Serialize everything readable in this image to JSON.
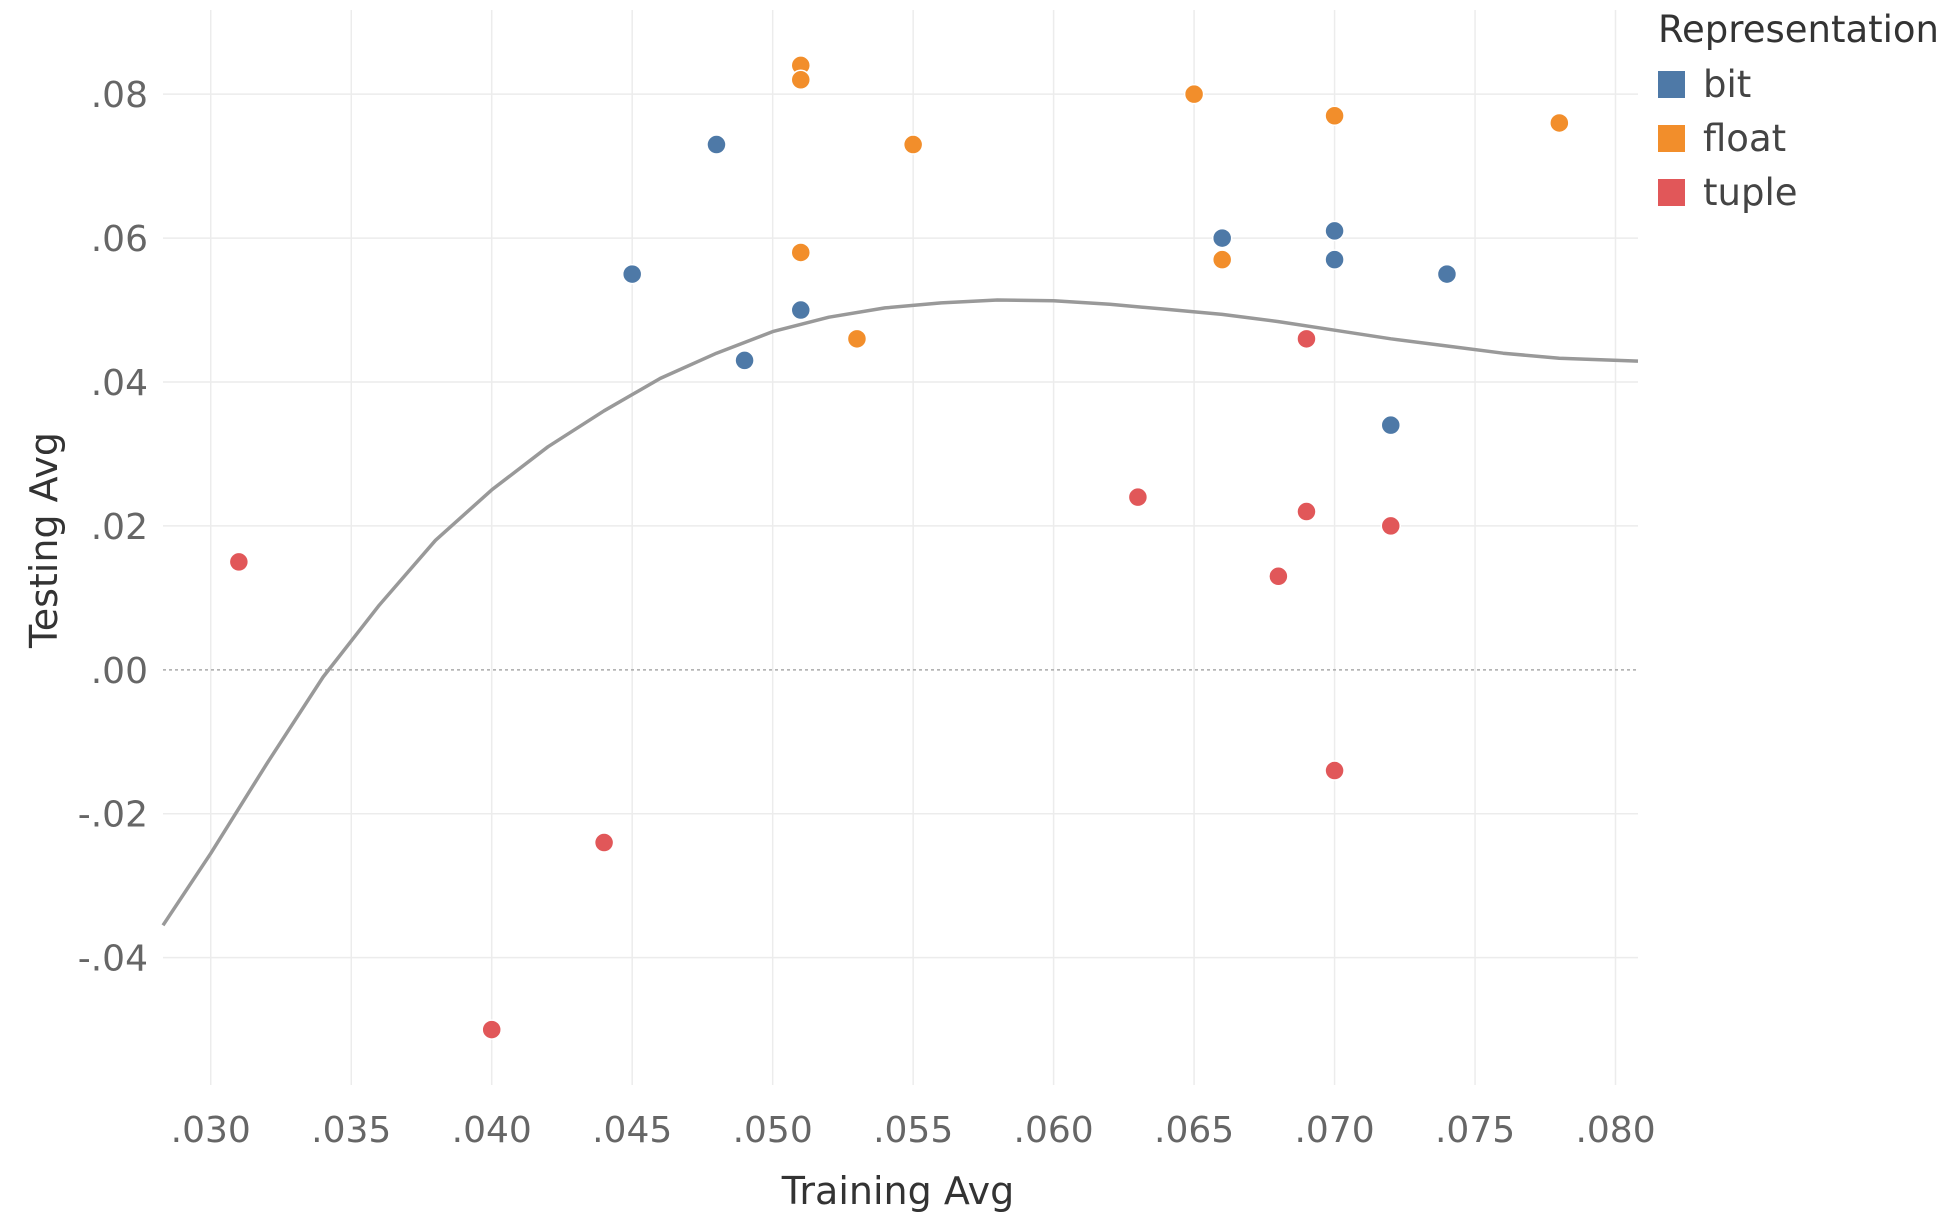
{
  "chart_data": {
    "type": "scatter",
    "xlabel": "Training Avg",
    "ylabel": "Testing Avg",
    "xlim": [
      0.0283,
      0.0808
    ],
    "ylim": [
      -0.0577,
      0.0917
    ],
    "x_ticks": [
      {
        "value": 0.03,
        "label": ".030"
      },
      {
        "value": 0.035,
        "label": ".035"
      },
      {
        "value": 0.04,
        "label": ".040"
      },
      {
        "value": 0.045,
        "label": ".045"
      },
      {
        "value": 0.05,
        "label": ".050"
      },
      {
        "value": 0.055,
        "label": ".055"
      },
      {
        "value": 0.06,
        "label": ".060"
      },
      {
        "value": 0.065,
        "label": ".065"
      },
      {
        "value": 0.07,
        "label": ".070"
      },
      {
        "value": 0.075,
        "label": ".075"
      },
      {
        "value": 0.08,
        "label": ".080"
      }
    ],
    "y_ticks": [
      {
        "value": 0.08,
        "label": ".08"
      },
      {
        "value": 0.06,
        "label": ".06"
      },
      {
        "value": 0.04,
        "label": ".04"
      },
      {
        "value": 0.02,
        "label": ".02"
      },
      {
        "value": 0.0,
        "label": ".00"
      },
      {
        "value": -0.02,
        "label": "-.02"
      },
      {
        "value": -0.04,
        "label": "-.04"
      }
    ],
    "grid": true,
    "zero_line": true,
    "legend": {
      "title": "Representation",
      "position": "top-right"
    },
    "series": [
      {
        "name": "bit",
        "color": "#4e79a7",
        "points": [
          {
            "x": 0.045,
            "y": 0.055
          },
          {
            "x": 0.048,
            "y": 0.073
          },
          {
            "x": 0.049,
            "y": 0.043
          },
          {
            "x": 0.051,
            "y": 0.05
          },
          {
            "x": 0.066,
            "y": 0.06
          },
          {
            "x": 0.07,
            "y": 0.061
          },
          {
            "x": 0.07,
            "y": 0.057
          },
          {
            "x": 0.072,
            "y": 0.034
          },
          {
            "x": 0.074,
            "y": 0.055
          }
        ]
      },
      {
        "name": "float",
        "color": "#f28e2b",
        "points": [
          {
            "x": 0.051,
            "y": 0.084
          },
          {
            "x": 0.051,
            "y": 0.082
          },
          {
            "x": 0.051,
            "y": 0.058
          },
          {
            "x": 0.053,
            "y": 0.046
          },
          {
            "x": 0.055,
            "y": 0.073
          },
          {
            "x": 0.065,
            "y": 0.08
          },
          {
            "x": 0.066,
            "y": 0.057
          },
          {
            "x": 0.07,
            "y": 0.077
          },
          {
            "x": 0.078,
            "y": 0.076
          }
        ]
      },
      {
        "name": "tuple",
        "color": "#e15759",
        "points": [
          {
            "x": 0.031,
            "y": 0.015
          },
          {
            "x": 0.04,
            "y": -0.05
          },
          {
            "x": 0.044,
            "y": -0.024
          },
          {
            "x": 0.063,
            "y": 0.024
          },
          {
            "x": 0.068,
            "y": 0.013
          },
          {
            "x": 0.069,
            "y": 0.046
          },
          {
            "x": 0.069,
            "y": 0.022
          },
          {
            "x": 0.07,
            "y": -0.014
          },
          {
            "x": 0.072,
            "y": 0.02
          }
        ]
      }
    ],
    "trend_line": {
      "color": "#999999",
      "points": [
        {
          "x": 0.0283,
          "y": -0.0355
        },
        {
          "x": 0.03,
          "y": -0.0255
        },
        {
          "x": 0.032,
          "y": -0.013
        },
        {
          "x": 0.034,
          "y": -0.001
        },
        {
          "x": 0.036,
          "y": 0.009
        },
        {
          "x": 0.038,
          "y": 0.018
        },
        {
          "x": 0.04,
          "y": 0.025
        },
        {
          "x": 0.042,
          "y": 0.031
        },
        {
          "x": 0.044,
          "y": 0.036
        },
        {
          "x": 0.046,
          "y": 0.0405
        },
        {
          "x": 0.048,
          "y": 0.044
        },
        {
          "x": 0.05,
          "y": 0.047
        },
        {
          "x": 0.052,
          "y": 0.049
        },
        {
          "x": 0.054,
          "y": 0.0503
        },
        {
          "x": 0.056,
          "y": 0.051
        },
        {
          "x": 0.058,
          "y": 0.0514
        },
        {
          "x": 0.06,
          "y": 0.0513
        },
        {
          "x": 0.062,
          "y": 0.0508
        },
        {
          "x": 0.064,
          "y": 0.0501
        },
        {
          "x": 0.066,
          "y": 0.0494
        },
        {
          "x": 0.068,
          "y": 0.0484
        },
        {
          "x": 0.07,
          "y": 0.0472
        },
        {
          "x": 0.072,
          "y": 0.046
        },
        {
          "x": 0.074,
          "y": 0.045
        },
        {
          "x": 0.076,
          "y": 0.044
        },
        {
          "x": 0.078,
          "y": 0.0433
        },
        {
          "x": 0.0808,
          "y": 0.0429
        }
      ]
    }
  }
}
